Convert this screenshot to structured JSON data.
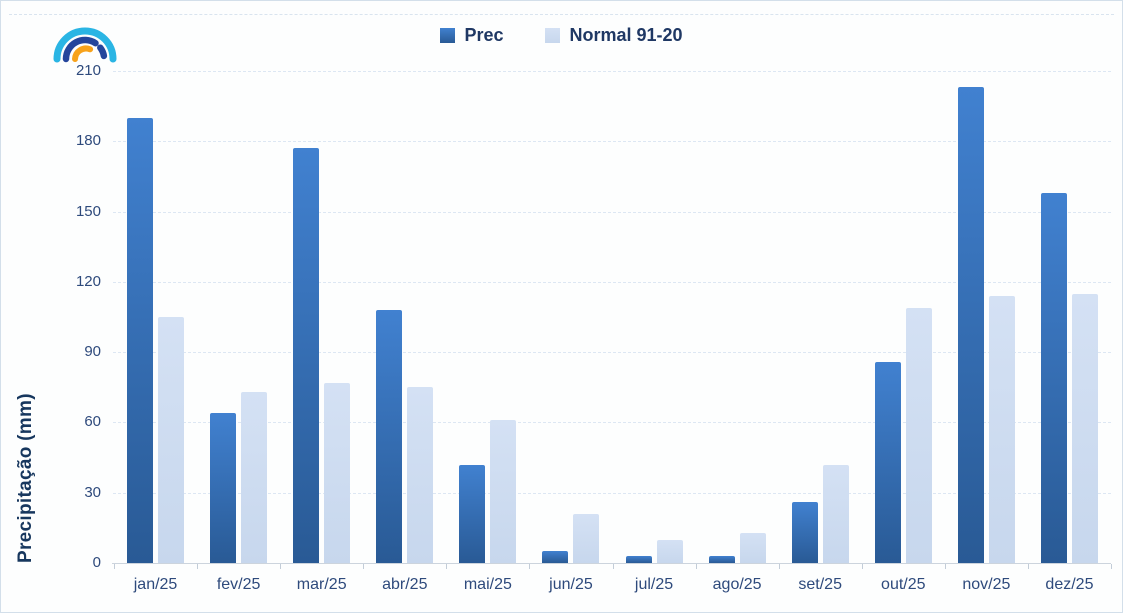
{
  "page": {
    "background": "#fdfefe",
    "border_color": "#d3dfea"
  },
  "logo": {
    "name": "ipma-rainbow-logo",
    "colors": {
      "outer_arc": "#2ab5e4",
      "inner_arc": "#24459c",
      "accent_arc": "#f7a21b"
    }
  },
  "chart_data": {
    "type": "bar",
    "title": "",
    "categories": [
      "jan/25",
      "fev/25",
      "mar/25",
      "abr/25",
      "mai/25",
      "jun/25",
      "jul/25",
      "ago/25",
      "set/25",
      "out/25",
      "nov/25",
      "dez/25"
    ],
    "series": [
      {
        "name": "Prec",
        "values": [
          190,
          64,
          177,
          108,
          42,
          5,
          3,
          3,
          26,
          86,
          203,
          158
        ],
        "color_top": "#4181d0",
        "color_bottom": "#295a95"
      },
      {
        "name": "Normal 91-20",
        "values": [
          105,
          73,
          77,
          75,
          61,
          21,
          10,
          13,
          42,
          109,
          114,
          115
        ],
        "color_top": "#d4e1f4",
        "color_bottom": "#c7d7ed"
      }
    ],
    "xlabel": "",
    "ylabel": "Precipitação (mm)",
    "ylim": [
      0,
      210
    ],
    "yticks": [
      0,
      30,
      60,
      90,
      120,
      150,
      180,
      210
    ],
    "grid": "horizontal-dashed",
    "legend_position": "top-center"
  },
  "colors": {
    "legend_text": "#1F3864",
    "axis_text": "#2E4A7C",
    "axis_title_text": "#17375E",
    "gridline": "#dde7f3",
    "axis_line": "#ccd4dd"
  }
}
